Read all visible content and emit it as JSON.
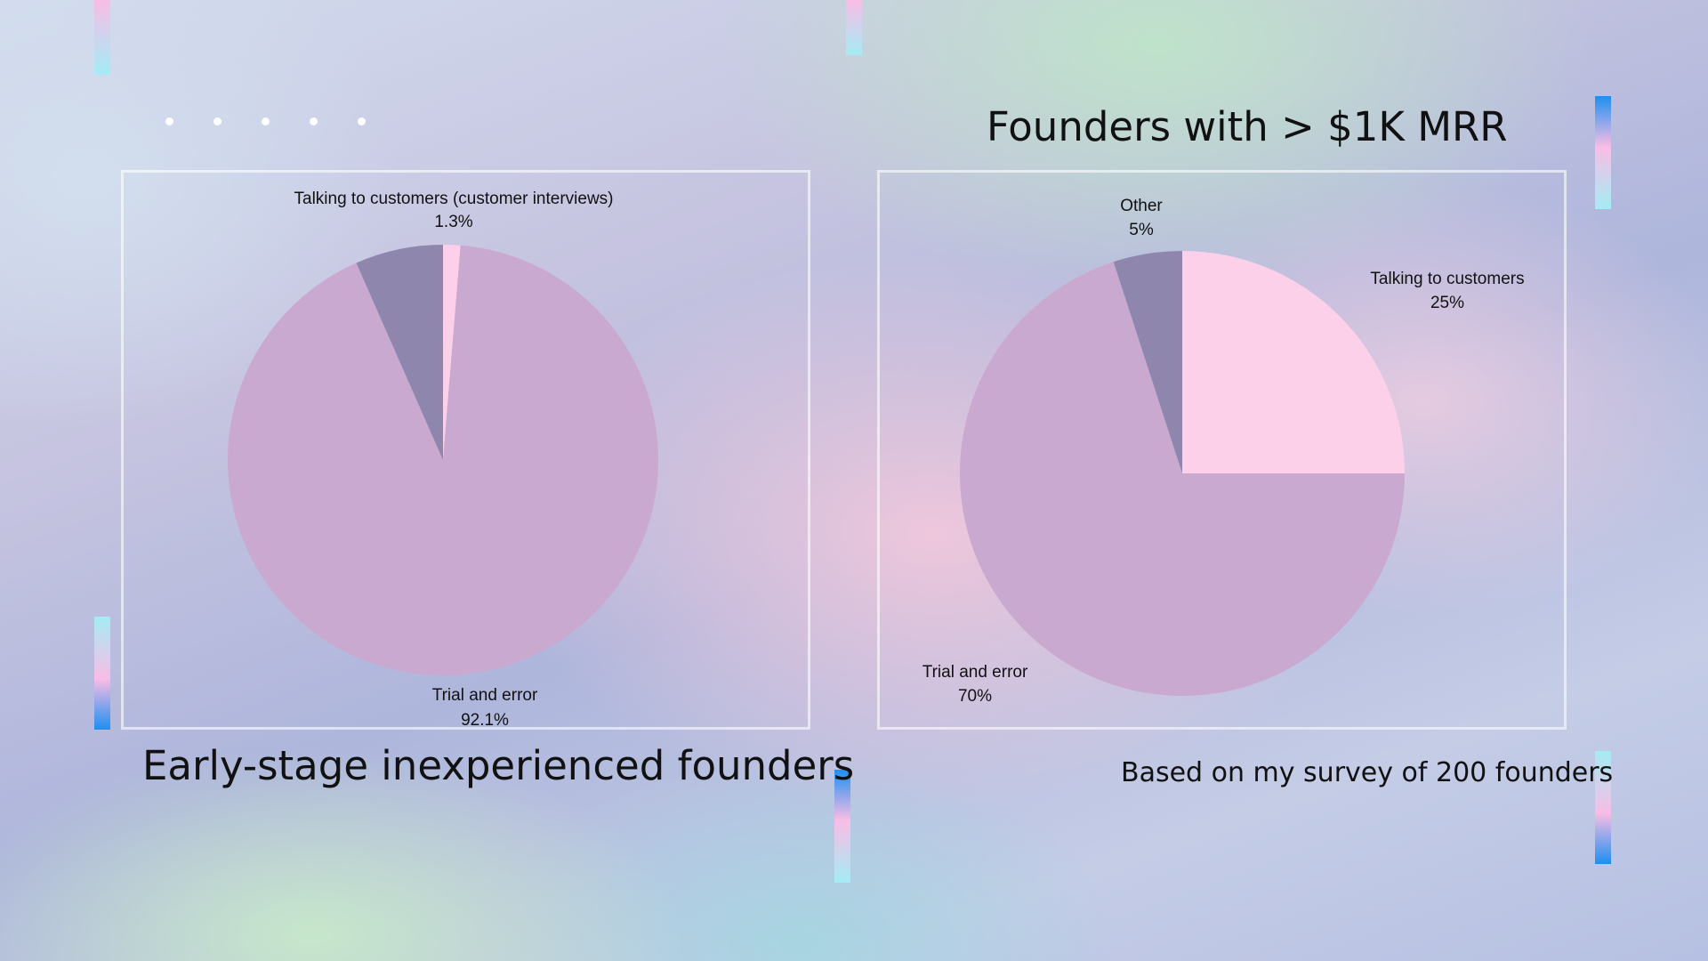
{
  "slide": {
    "left_title": "Early-stage inexperienced founders",
    "right_title": "Founders with > $1K MRR",
    "footnote": "Based on my survey of 200 founders"
  },
  "chart_data": [
    {
      "type": "pie",
      "title": "Early-stage inexperienced founders",
      "slices": [
        {
          "label": "Talking to customers (customer interviews)",
          "value": 1.3,
          "value_label": "1.3%",
          "color": "#fdd0ea"
        },
        {
          "label": "Trial and error",
          "value": 92.1,
          "value_label": "92.1%",
          "color": "#c9a9cf"
        },
        {
          "label": "",
          "value": 6.6,
          "value_label": "",
          "color": "#8f86ae"
        }
      ]
    },
    {
      "type": "pie",
      "title": "Founders with > $1K MRR",
      "slices": [
        {
          "label": "Talking to customers",
          "value": 25,
          "value_label": "25%",
          "color": "#fdd0ea"
        },
        {
          "label": "Trial and error",
          "value": 70,
          "value_label": "70%",
          "color": "#c9a9cf"
        },
        {
          "label": "Other",
          "value": 5,
          "value_label": "5%",
          "color": "#8f86ae"
        }
      ]
    }
  ],
  "colors": {
    "accent_blue": "#1e8ff0",
    "accent_pink": "#f8bde6",
    "accent_cyan": "#a4ecf4"
  }
}
